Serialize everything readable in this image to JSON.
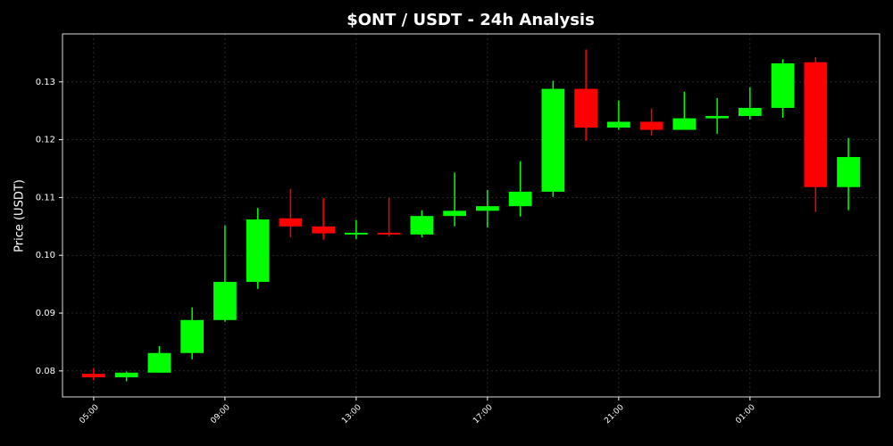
{
  "chart_data": {
    "type": "candlestick",
    "title": "$ONT / USDT - 24h Analysis",
    "y_label": "Price (USDT)",
    "categories": [
      "05:00",
      null,
      null,
      null,
      "09:00",
      null,
      null,
      null,
      "13:00",
      null,
      null,
      null,
      "17:00",
      null,
      null,
      null,
      "21:00",
      null,
      null,
      null,
      "01:00",
      null,
      null,
      null
    ],
    "open": [
      0.0795,
      0.0789,
      0.0797,
      0.0831,
      0.0888,
      0.0954,
      0.1064,
      0.105,
      0.1036,
      0.1039,
      0.1036,
      0.1068,
      0.1077,
      0.1085,
      0.111,
      0.1288,
      0.1221,
      0.1231,
      0.1217,
      0.1237,
      0.1241,
      0.1255,
      0.1334,
      0.1118
    ],
    "high": [
      0.0805,
      0.0799,
      0.0843,
      0.091,
      0.1052,
      0.1082,
      0.1115,
      0.1099,
      0.1061,
      0.1099,
      0.1078,
      0.1143,
      0.1113,
      0.1163,
      0.1302,
      0.1356,
      0.1268,
      0.1254,
      0.1283,
      0.1272,
      0.1291,
      0.1339,
      0.1343,
      0.1203
    ],
    "low": [
      0.0784,
      0.0782,
      0.0797,
      0.082,
      0.0885,
      0.0942,
      0.1031,
      0.1027,
      0.1028,
      0.1033,
      0.1031,
      0.105,
      0.1048,
      0.1067,
      0.1101,
      0.1198,
      0.1217,
      0.1207,
      0.1217,
      0.121,
      0.1235,
      0.1238,
      0.1075,
      0.1078
    ],
    "close": [
      0.0789,
      0.0797,
      0.0831,
      0.0888,
      0.0954,
      0.1062,
      0.105,
      0.1038,
      0.1039,
      0.1036,
      0.1068,
      0.1077,
      0.1085,
      0.111,
      0.1288,
      0.1221,
      0.1231,
      0.1217,
      0.1237,
      0.1241,
      0.1255,
      0.1332,
      0.1118,
      0.117
    ],
    "up_color": "#00ff00",
    "down_color": "#ff0000",
    "ylim": [
      0.0755,
      0.1383
    ],
    "yticks": [
      0.08,
      0.09,
      {
        "value": 0.1,
        "label": "0.10"
      },
      0.11,
      0.12,
      0.13
    ],
    "grid": true
  }
}
